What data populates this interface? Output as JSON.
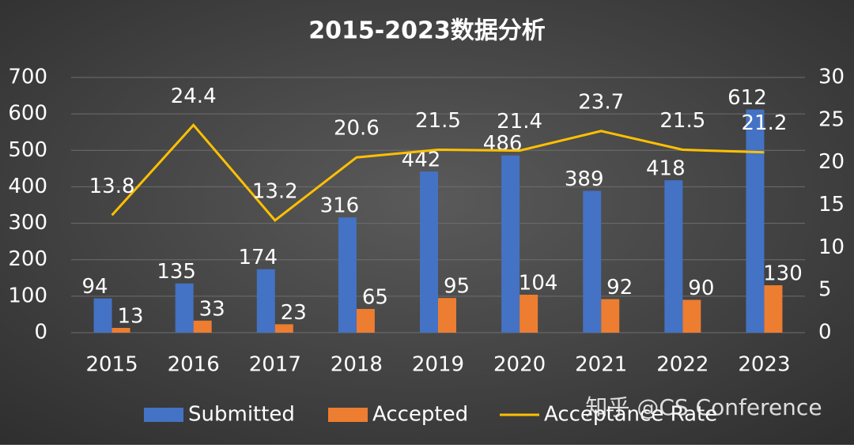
{
  "chart_data": {
    "type": "bar-line",
    "title": "2015-2023数据分析",
    "categories": [
      "2015",
      "2016",
      "2017",
      "2018",
      "2019",
      "2020",
      "2021",
      "2022",
      "2023"
    ],
    "series": [
      {
        "name": "Submitted",
        "color": "#4472c4",
        "type": "bar",
        "values": [
          94,
          135,
          174,
          316,
          442,
          486,
          389,
          418,
          612
        ]
      },
      {
        "name": "Accepted",
        "color": "#ed7d31",
        "type": "bar",
        "values": [
          13,
          33,
          23,
          65,
          95,
          104,
          92,
          90,
          130
        ]
      },
      {
        "name": "Acceptance Rate",
        "color": "#ffc000",
        "type": "line",
        "axis": "y2",
        "values": [
          13.8,
          24.4,
          13.2,
          20.6,
          21.5,
          21.4,
          23.7,
          21.5,
          21.2
        ]
      }
    ],
    "ylim": [
      0,
      700
    ],
    "yticks": [
      0,
      100,
      200,
      300,
      400,
      500,
      600,
      700
    ],
    "y2lim": [
      0,
      30
    ],
    "y2ticks": [
      0,
      5,
      10,
      15,
      20,
      25,
      30
    ],
    "grid": true,
    "legend": "bottom",
    "watermark": "知乎 @CS Conference"
  }
}
